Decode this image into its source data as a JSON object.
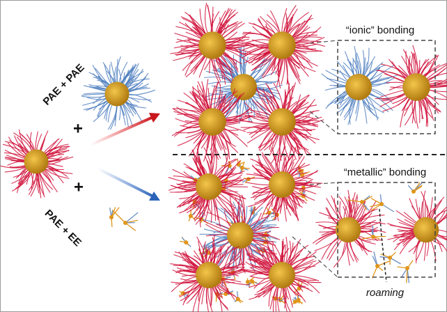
{
  "labels": {
    "pae_pae": "PAE + PAE",
    "pae_ee": "PAE + EE",
    "plus": "+",
    "ionic": "“ionic” bonding",
    "metallic": "“metallic” bonding",
    "roaming": "roaming"
  }
}
